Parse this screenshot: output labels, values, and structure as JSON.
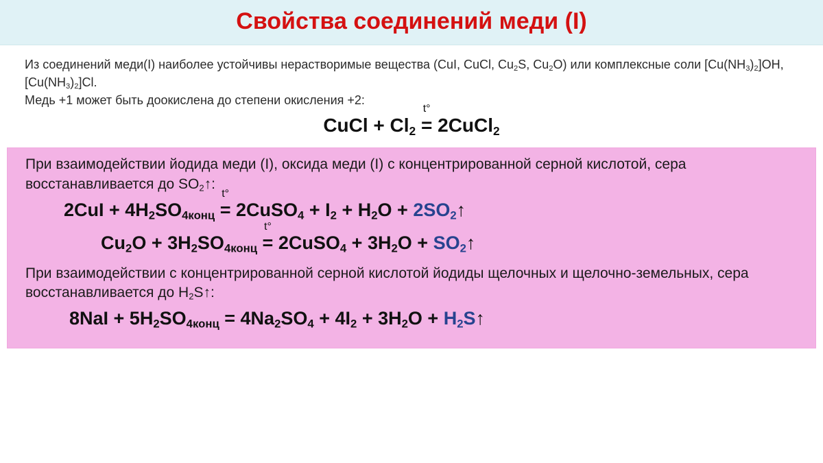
{
  "title": "Свойства соединений меди (I)",
  "intro_l1": "Из соединений меди(I) наиболее устойчивы нерастворимые вещества (CuI, CuCl, Cu₂S, Cu₂O) или комплексные соли [Cu(NH₃)₂]OH, [Cu(NH₃)₂]Cl.",
  "intro_l2": "Медь +1 может быть доокислена до степени окисления +2:",
  "pink_p1": "При взаимодействии йодида меди (I), оксида меди (I) с концентрированной серной кислотой, сера восстанавливается до SO₂↑:",
  "pink_p2": "При взаимодействии с концентрированной серной кислотой йодиды щелочных и щелочно-земельных, сера восстанавливается до H₂S↑:",
  "colors": {
    "title": "#d41111",
    "title_bg": "#e0f2f6",
    "pink_bg": "#f3b3e5",
    "gas": "#27438f",
    "body_bg": "#ffffff"
  },
  "equations": {
    "eq1": "CuCl + Cl₂ =(t°) 2CuCl₂",
    "eq2": "2CuI + 4H₂SO₄конц =(t°) 2CuSO₄ + I₂ + H₂O + 2SO₂↑",
    "eq3": "Cu₂O + 3H₂SO₄конц =(t°) 2CuSO₄ + 3H₂O + SO₂↑",
    "eq4": "8NaI + 5H₂SO₄конц = 4Na₂SO₄ + 4I₂ + 3H₂O + H₂S↑"
  },
  "typography": {
    "title_fontsize": 34,
    "intro_fontsize": 18,
    "eq_fontsize": 28,
    "pink_para_fontsize": 21,
    "pink_eq_fontsize": 27
  }
}
